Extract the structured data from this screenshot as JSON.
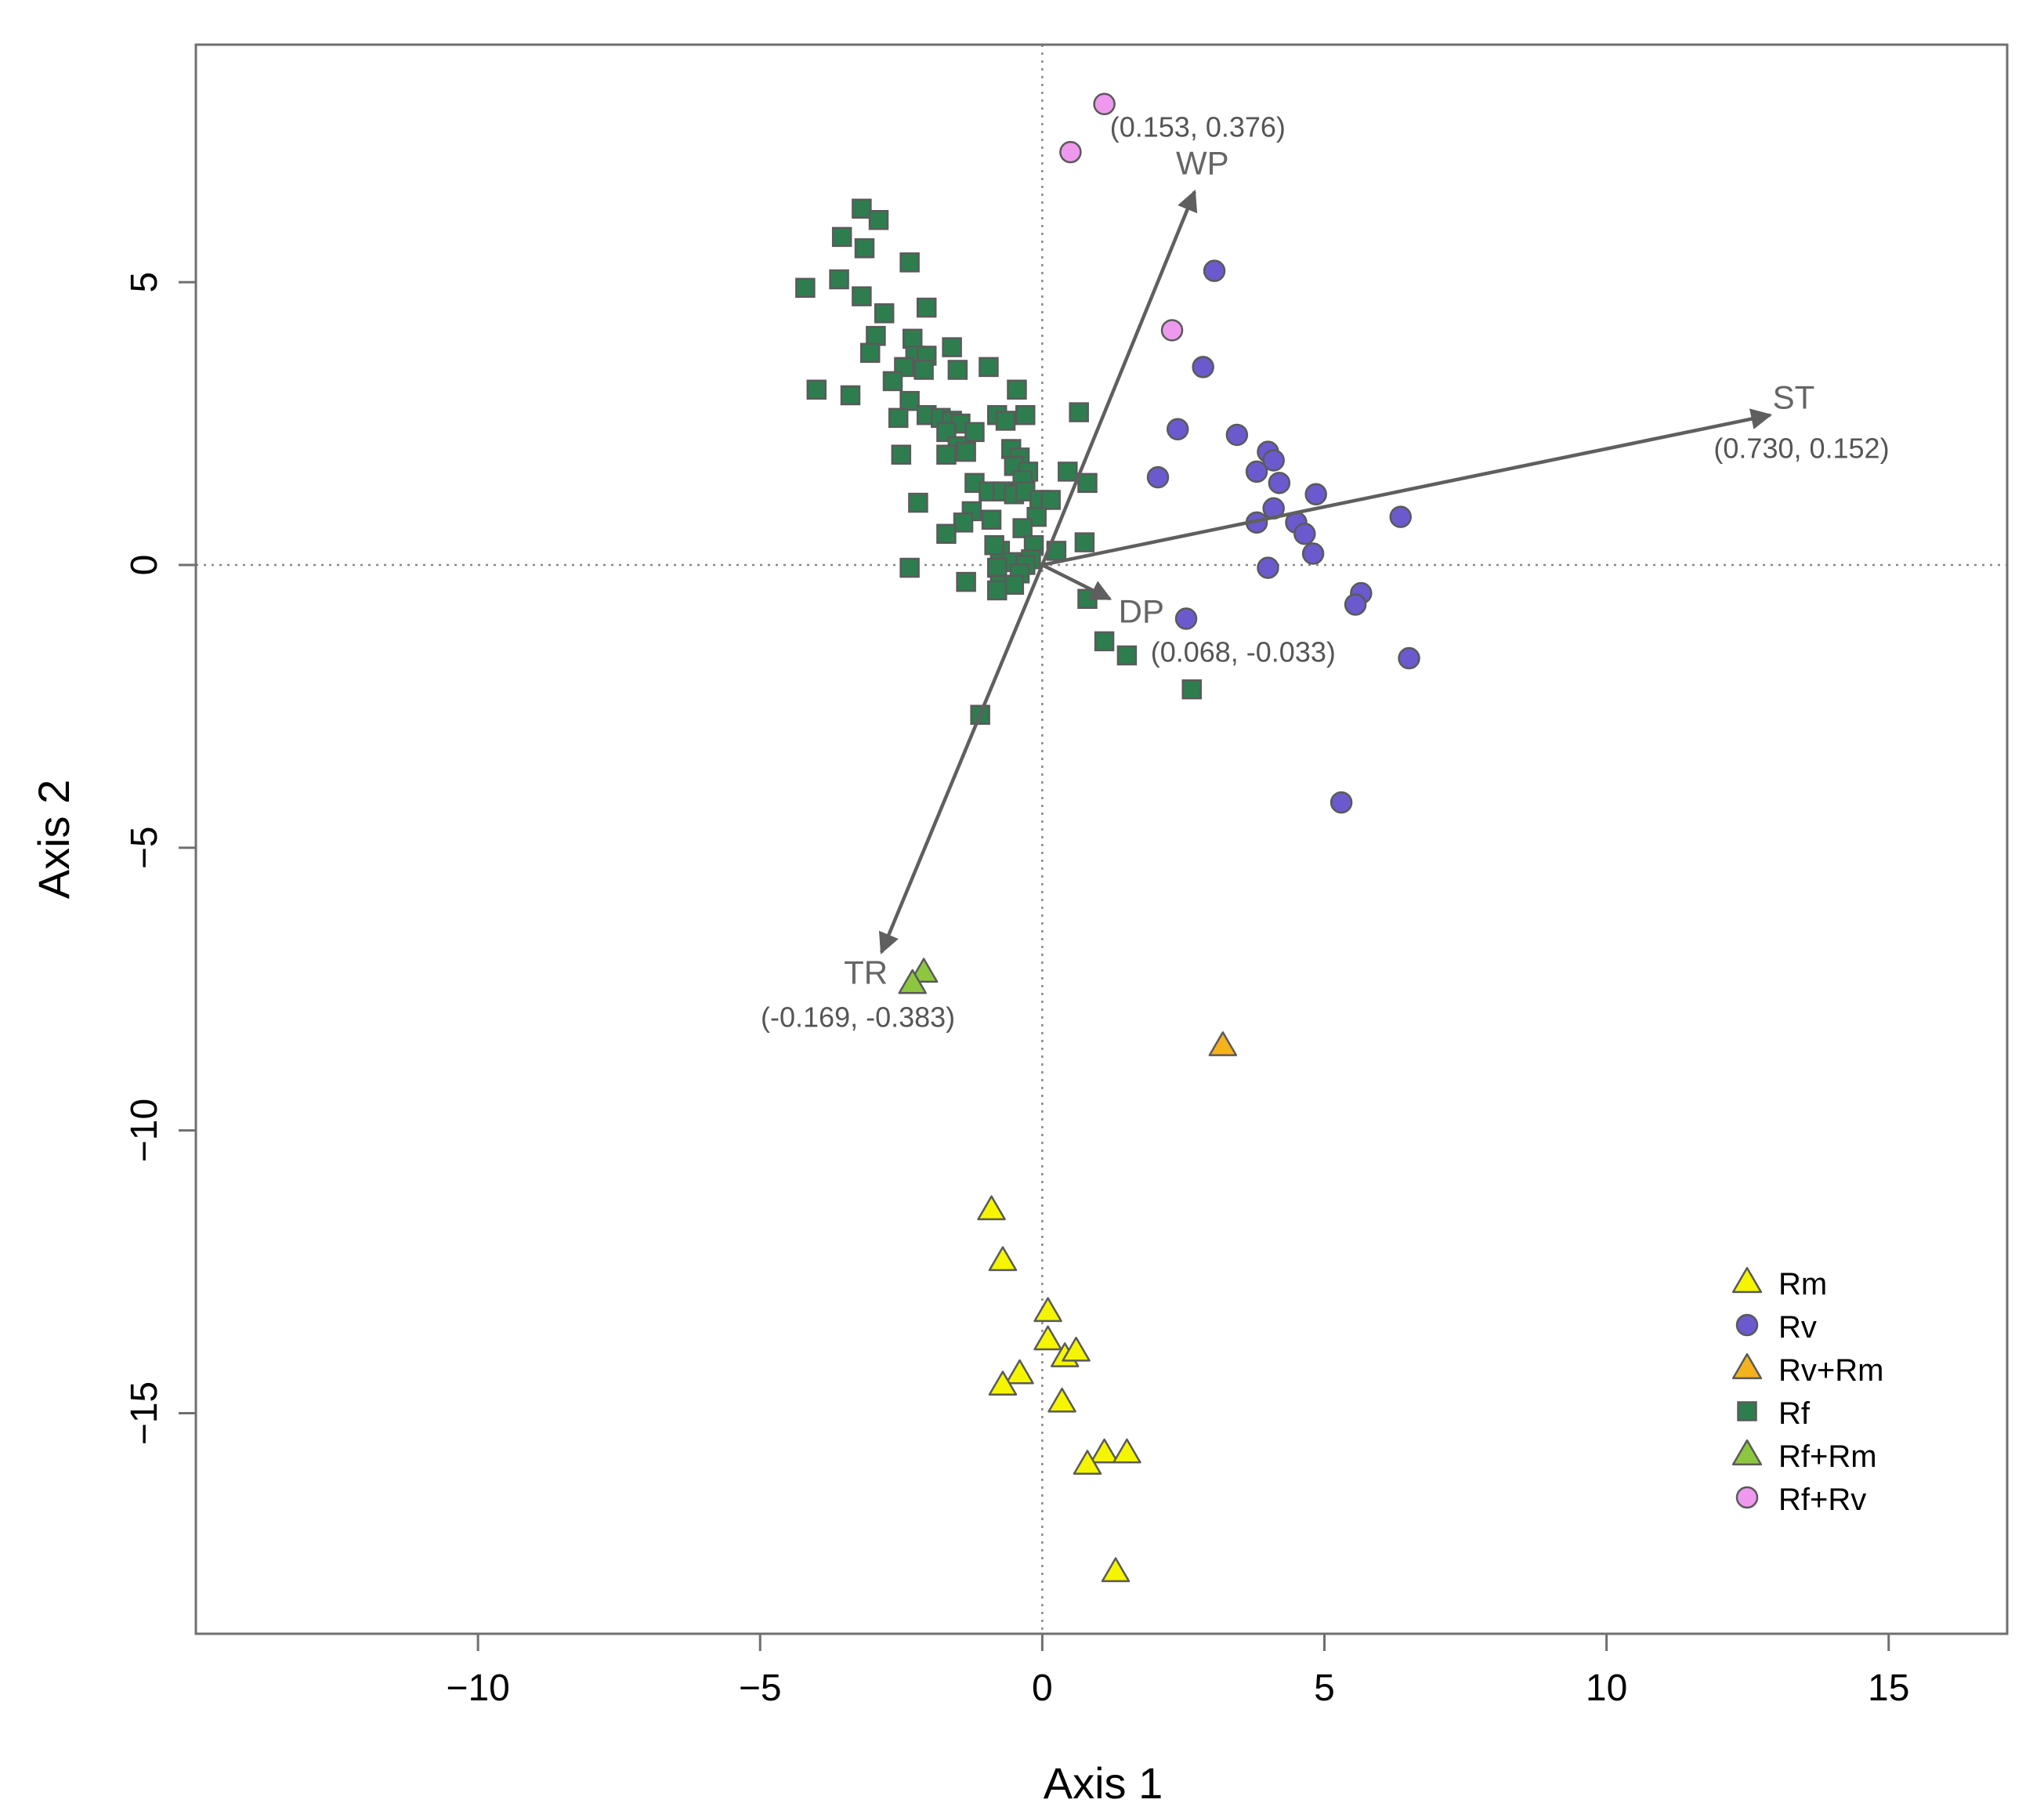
{
  "chart_data": {
    "type": "scatter",
    "title": "",
    "xlabel": "Axis 1",
    "ylabel": "Axis 2",
    "xlim": [
      -15,
      17.1
    ],
    "ylim": [
      -18.9,
      9.2
    ],
    "xticks": [
      -10,
      -5,
      0,
      5,
      10,
      15
    ],
    "yticks": [
      5,
      0,
      -5,
      -10,
      -15
    ],
    "xtick_labels": [
      "−10",
      "−5",
      "0",
      "5",
      "10",
      "15"
    ],
    "ytick_labels": [
      "5",
      "0",
      "−5",
      "−10",
      "−15"
    ],
    "reference_lines": {
      "x": 0,
      "y": 0,
      "style": "dotted"
    },
    "legend_position": "bottom-right",
    "series": [
      {
        "name": "Rm",
        "marker": "triangle",
        "color": "#f5f500",
        "points": [
          [
            -0.9,
            -11.4
          ],
          [
            -0.7,
            -12.3
          ],
          [
            0.1,
            -13.2
          ],
          [
            0.1,
            -13.7
          ],
          [
            0.4,
            -14.0
          ],
          [
            0.6,
            -13.9
          ],
          [
            -0.4,
            -14.3
          ],
          [
            -0.7,
            -14.5
          ],
          [
            0.35,
            -14.8
          ],
          [
            1.1,
            -15.7
          ],
          [
            1.5,
            -15.7
          ],
          [
            0.8,
            -15.9
          ],
          [
            1.3,
            -17.8
          ]
        ]
      },
      {
        "name": "Rv",
        "marker": "circle",
        "color": "#6a5acd",
        "points": [
          [
            3.05,
            5.2
          ],
          [
            2.85,
            3.5
          ],
          [
            2.4,
            2.4
          ],
          [
            3.45,
            2.3
          ],
          [
            4.0,
            2.0
          ],
          [
            4.1,
            1.85
          ],
          [
            3.8,
            1.65
          ],
          [
            4.2,
            1.45
          ],
          [
            2.05,
            1.55
          ],
          [
            4.85,
            1.25
          ],
          [
            4.1,
            1.0
          ],
          [
            3.8,
            0.75
          ],
          [
            4.5,
            0.75
          ],
          [
            4.65,
            0.55
          ],
          [
            6.35,
            0.85
          ],
          [
            4.8,
            0.2
          ],
          [
            4.0,
            -0.05
          ],
          [
            5.65,
            -0.5
          ],
          [
            5.55,
            -0.7
          ],
          [
            2.55,
            -0.95
          ],
          [
            6.5,
            -1.65
          ],
          [
            5.3,
            -4.2
          ]
        ]
      },
      {
        "name": "Rv+Rm",
        "marker": "triangle",
        "color": "#f5b21f",
        "points": [
          [
            3.2,
            -8.5
          ]
        ]
      },
      {
        "name": "Rf",
        "marker": "square",
        "color": "#2e7d4f",
        "points": [
          [
            -3.2,
            6.3
          ],
          [
            -2.9,
            6.1
          ],
          [
            -3.55,
            5.8
          ],
          [
            -3.15,
            5.6
          ],
          [
            -2.35,
            5.35
          ],
          [
            -4.2,
            4.9
          ],
          [
            -3.6,
            5.05
          ],
          [
            -3.2,
            4.75
          ],
          [
            -2.8,
            4.45
          ],
          [
            -2.05,
            4.55
          ],
          [
            -2.95,
            4.05
          ],
          [
            -3.05,
            3.75
          ],
          [
            -2.3,
            4.0
          ],
          [
            -2.25,
            3.7
          ],
          [
            -2.05,
            3.7
          ],
          [
            -1.6,
            3.85
          ],
          [
            -2.45,
            3.5
          ],
          [
            -2.1,
            3.45
          ],
          [
            -1.5,
            3.45
          ],
          [
            -0.95,
            3.5
          ],
          [
            -2.65,
            3.25
          ],
          [
            -4.0,
            3.1
          ],
          [
            -3.4,
            3.0
          ],
          [
            -2.35,
            2.9
          ],
          [
            -0.45,
            3.1
          ],
          [
            -2.55,
            2.6
          ],
          [
            -2.05,
            2.65
          ],
          [
            -1.8,
            2.6
          ],
          [
            -1.6,
            2.55
          ],
          [
            -1.45,
            2.5
          ],
          [
            -0.8,
            2.65
          ],
          [
            -0.3,
            2.65
          ],
          [
            0.65,
            2.7
          ],
          [
            -1.7,
            2.35
          ],
          [
            -1.2,
            2.35
          ],
          [
            -0.65,
            2.55
          ],
          [
            -1.5,
            2.1
          ],
          [
            -1.35,
            2.0
          ],
          [
            -2.5,
            1.95
          ],
          [
            -1.7,
            1.95
          ],
          [
            -0.55,
            2.05
          ],
          [
            -0.4,
            1.9
          ],
          [
            -0.5,
            1.75
          ],
          [
            -0.25,
            1.65
          ],
          [
            -0.35,
            1.5
          ],
          [
            0.45,
            1.65
          ],
          [
            -1.2,
            1.45
          ],
          [
            -0.95,
            1.3
          ],
          [
            -0.7,
            1.3
          ],
          [
            -0.5,
            1.25
          ],
          [
            -0.3,
            1.3
          ],
          [
            0.8,
            1.45
          ],
          [
            -2.2,
            1.1
          ],
          [
            -1.25,
            0.95
          ],
          [
            -0.05,
            1.15
          ],
          [
            0.15,
            1.15
          ],
          [
            -0.1,
            0.85
          ],
          [
            -1.4,
            0.75
          ],
          [
            -0.9,
            0.8
          ],
          [
            -0.35,
            0.65
          ],
          [
            -1.7,
            0.55
          ],
          [
            0.75,
            0.4
          ],
          [
            -0.15,
            0.35
          ],
          [
            -0.75,
            0.25
          ],
          [
            -0.85,
            0.35
          ],
          [
            0.25,
            0.25
          ],
          [
            -0.2,
            0.1
          ],
          [
            -0.55,
            0.05
          ],
          [
            -0.3,
            0.0
          ],
          [
            -2.35,
            -0.05
          ],
          [
            -0.8,
            -0.05
          ],
          [
            -0.4,
            -0.15
          ],
          [
            -1.35,
            -0.3
          ],
          [
            -0.75,
            -0.35
          ],
          [
            -0.5,
            -0.35
          ],
          [
            -0.8,
            -0.45
          ],
          [
            0.8,
            -0.6
          ],
          [
            1.1,
            -1.35
          ],
          [
            1.5,
            -1.6
          ],
          [
            2.65,
            -2.2
          ],
          [
            -1.1,
            -2.65
          ]
        ]
      },
      {
        "name": "Rf+Rm",
        "marker": "triangle",
        "color": "#8dc63f",
        "points": [
          [
            -2.1,
            -7.2
          ],
          [
            -2.3,
            -7.4
          ]
        ]
      },
      {
        "name": "Rf+Rv",
        "marker": "circle",
        "color": "#ee99ee",
        "points": [
          [
            1.1,
            8.15
          ],
          [
            0.5,
            7.3
          ],
          [
            2.3,
            4.15
          ]
        ]
      }
    ],
    "vectors": [
      {
        "name": "ST",
        "x": 12.9,
        "y": 2.65,
        "label": "ST",
        "coords": "(0.730, 0.152)"
      },
      {
        "name": "WP",
        "x": 2.7,
        "y": 6.6,
        "label": "WP",
        "coords": "(0.153, 0.376)"
      },
      {
        "name": "DP",
        "x": 1.2,
        "y": -0.6,
        "label": "DP",
        "coords": "(0.068, -0.033)"
      },
      {
        "name": "TR",
        "x": -2.85,
        "y": -6.85,
        "label": "TR",
        "coords": "(-0.169, -0.383)"
      }
    ]
  }
}
